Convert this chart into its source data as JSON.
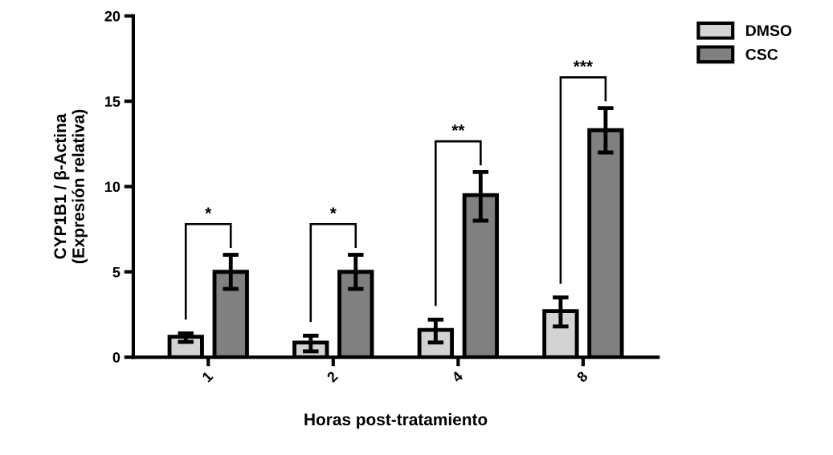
{
  "chart_data": {
    "type": "bar",
    "xlabel": "Horas post-tratamiento",
    "ylabel": "CYP1B1 / β-Actina\n(Expresión relativa)",
    "categories": [
      "1",
      "2",
      "4",
      "8"
    ],
    "series": [
      {
        "name": "DMSO",
        "color": "#d3d3d3",
        "values": [
          1.2,
          0.86,
          1.6,
          2.7
        ],
        "errors": [
          [
            0.9,
            1.4
          ],
          [
            0.34,
            1.26
          ],
          [
            0.86,
            2.2
          ],
          [
            1.8,
            3.5
          ]
        ]
      },
      {
        "name": "CSC",
        "color": "#808080",
        "values": [
          5.0,
          5.0,
          9.5,
          13.3
        ],
        "errors": [
          [
            4.0,
            6.0
          ],
          [
            4.0,
            6.0
          ],
          [
            8.0,
            10.85
          ],
          [
            12.0,
            14.6
          ]
        ]
      }
    ],
    "ylim": [
      0,
      20
    ],
    "yticks": [
      0,
      5,
      10,
      15,
      20
    ],
    "grid": false,
    "legend": "top right",
    "annotations": [
      "*",
      "*",
      "**",
      "***"
    ]
  }
}
